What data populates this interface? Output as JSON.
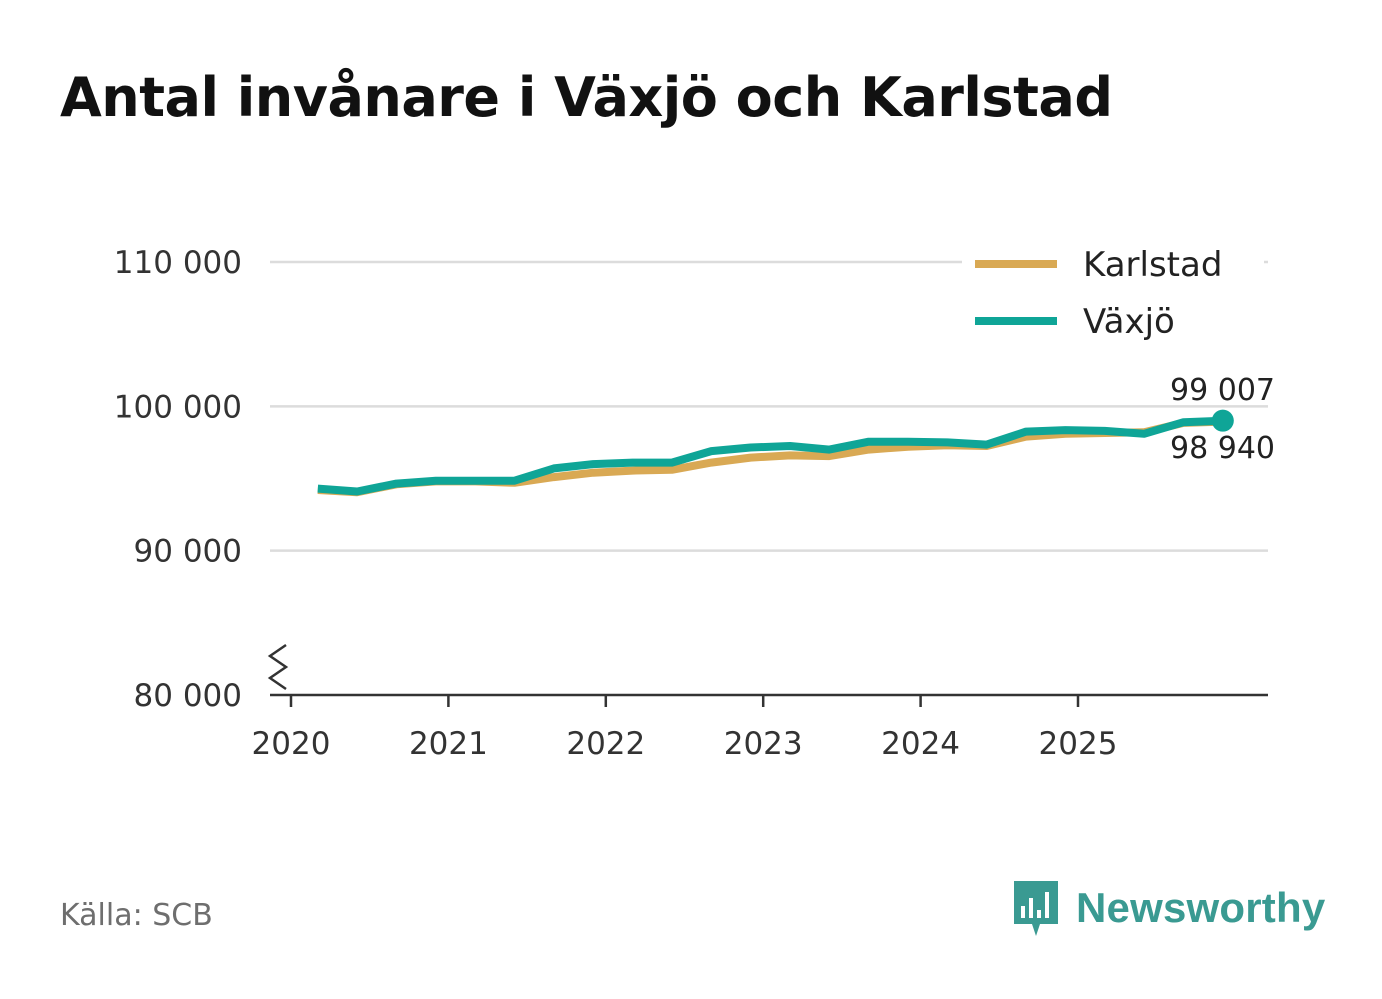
{
  "chart_data": {
    "type": "line",
    "title": "Antal invånare i Växjö och Karlstad",
    "xlabel": "",
    "ylabel": "",
    "x_ticks": [
      "2020",
      "2021",
      "2022",
      "2023",
      "2024",
      "2025"
    ],
    "y_ticks": [
      80000,
      90000,
      100000,
      110000
    ],
    "y_tick_labels": [
      "80 000",
      "90 000",
      "100 000",
      "110 000"
    ],
    "ylim": [
      80000,
      110000
    ],
    "xlim": [
      2020.0,
      2026.25
    ],
    "grid": true,
    "legend_position": "top-right",
    "x": [
      2020.17,
      2020.42,
      2020.67,
      2020.92,
      2021.17,
      2021.42,
      2021.67,
      2021.92,
      2022.17,
      2022.42,
      2022.67,
      2022.92,
      2023.17,
      2023.42,
      2023.67,
      2023.92,
      2024.17,
      2024.42,
      2024.67,
      2024.92,
      2025.17,
      2025.42,
      2025.67,
      2025.92
    ],
    "series": [
      {
        "name": "Karlstad",
        "color": "#d9a954",
        "values": [
          94200,
          94050,
          94600,
          94800,
          94800,
          94700,
          95100,
          95400,
          95550,
          95600,
          96100,
          96450,
          96600,
          96550,
          97000,
          97200,
          97300,
          97250,
          97900,
          98100,
          98150,
          98200,
          98850,
          98940
        ]
      },
      {
        "name": "Växjö",
        "color": "#0fa597",
        "values": [
          94300,
          94100,
          94650,
          94850,
          94850,
          94850,
          95700,
          96000,
          96100,
          96100,
          96900,
          97150,
          97250,
          97000,
          97550,
          97550,
          97500,
          97350,
          98250,
          98350,
          98300,
          98100,
          98900,
          99007
        ]
      }
    ],
    "end_labels": [
      "99 007",
      "98 940"
    ]
  },
  "footer": {
    "source": "Källa: SCB",
    "brand": "Newsworthy"
  }
}
